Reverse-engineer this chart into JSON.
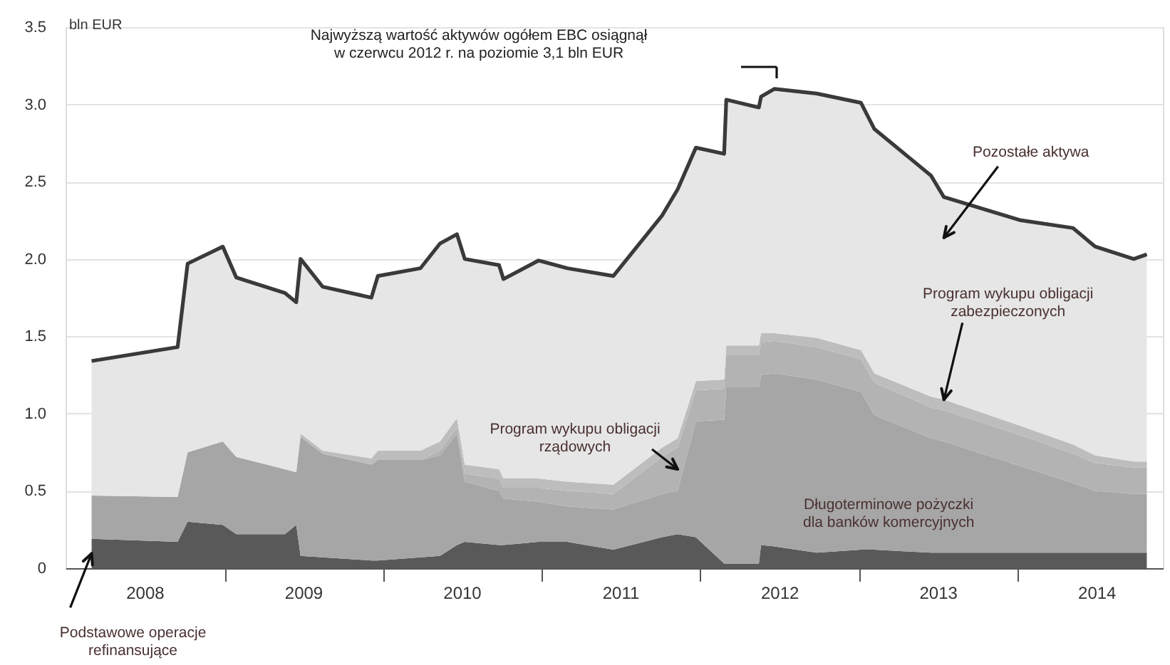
{
  "chart_data": {
    "type": "area",
    "stacked": true,
    "ylabel": "bln EUR",
    "grid": "y",
    "x": [
      "2008-03-01",
      "2008-09-15",
      "2008-10-08",
      "2008-12-28",
      "2009-01-28",
      "2009-05-20",
      "2009-06-15",
      "2009-06-25",
      "2009-08-15",
      "2009-12-05",
      "2009-12-20",
      "2010-03-28",
      "2010-05-12",
      "2010-06-20",
      "2010-07-08",
      "2010-09-25",
      "2010-10-05",
      "2010-12-25",
      "2011-03-01",
      "2011-06-15",
      "2011-10-05",
      "2011-11-10",
      "2011-12-22",
      "2012-02-25",
      "2012-03-01",
      "2012-05-15",
      "2012-05-20",
      "2012-06-20",
      "2012-09-25",
      "2013-01-05",
      "2013-02-05",
      "2013-06-15",
      "2013-07-15",
      "2014-01-08",
      "2014-05-08",
      "2014-06-28",
      "2014-09-25",
      "2014-10-25"
    ],
    "series": [
      {
        "name": "Podstawowe operacje\nrefinansujące",
        "color": "#595959",
        "values": [
          0.19,
          0.17,
          0.3,
          0.28,
          0.22,
          0.22,
          0.28,
          0.08,
          0.07,
          0.05,
          0.05,
          0.07,
          0.08,
          0.15,
          0.17,
          0.15,
          0.15,
          0.17,
          0.17,
          0.12,
          0.2,
          0.22,
          0.2,
          0.03,
          0.03,
          0.03,
          0.15,
          0.14,
          0.1,
          0.12,
          0.12,
          0.1,
          0.1,
          0.1,
          0.1,
          0.1,
          0.1,
          0.1
        ]
      },
      {
        "name": "Długoterminowe pożyczki\ndla banków komercyjnych",
        "color": "#a6a6a6",
        "values": [
          0.28,
          0.29,
          0.45,
          0.54,
          0.5,
          0.42,
          0.34,
          0.77,
          0.67,
          0.62,
          0.65,
          0.63,
          0.65,
          0.72,
          0.39,
          0.35,
          0.3,
          0.26,
          0.23,
          0.26,
          0.28,
          0.28,
          0.75,
          0.93,
          1.14,
          1.14,
          1.1,
          1.12,
          1.12,
          1.02,
          0.87,
          0.74,
          0.72,
          0.56,
          0.45,
          0.4,
          0.38,
          0.38
        ]
      },
      {
        "name": "Program wykupu obligacji\nrządowych",
        "color": "#b3b3b3",
        "values": [
          0,
          0,
          0,
          0,
          0,
          0,
          0,
          0,
          0,
          0,
          0,
          0,
          0.03,
          0.04,
          0.05,
          0.08,
          0.07,
          0.09,
          0.1,
          0.1,
          0.24,
          0.28,
          0.2,
          0.2,
          0.21,
          0.21,
          0.21,
          0.21,
          0.21,
          0.21,
          0.21,
          0.2,
          0.2,
          0.2,
          0.19,
          0.18,
          0.17,
          0.17
        ]
      },
      {
        "name": "Program wykupu obligacji\nzabezpieczonych",
        "color": "#bdbdbd",
        "values": [
          0,
          0,
          0,
          0,
          0,
          0,
          0,
          0.02,
          0.02,
          0.04,
          0.06,
          0.06,
          0.06,
          0.06,
          0.06,
          0.06,
          0.06,
          0.06,
          0.06,
          0.06,
          0.06,
          0.06,
          0.06,
          0.06,
          0.06,
          0.06,
          0.06,
          0.05,
          0.06,
          0.06,
          0.06,
          0.07,
          0.07,
          0.06,
          0.06,
          0.05,
          0.04,
          0.04
        ]
      },
      {
        "name": "Pozostałe aktywa",
        "color": "#e6e6e6",
        "values": [
          0.87,
          0.97,
          1.22,
          1.26,
          1.16,
          1.14,
          1.1,
          1.13,
          1.06,
          1.04,
          1.13,
          1.18,
          1.28,
          1.19,
          1.33,
          1.32,
          1.29,
          1.41,
          1.38,
          1.35,
          1.5,
          1.61,
          1.51,
          1.46,
          1.59,
          1.54,
          1.53,
          1.58,
          1.58,
          1.6,
          1.58,
          1.43,
          1.31,
          1.33,
          1.4,
          1.35,
          1.31,
          1.34
        ]
      }
    ],
    "xlim": [
      "2008-01-01",
      "2014-12-01"
    ],
    "xticks": [
      {
        "value": "2008-07-01",
        "label": "2008"
      },
      {
        "value": "2009-01-01",
        "label": null
      },
      {
        "value": "2009-07-01",
        "label": "2009"
      },
      {
        "value": "2010-01-01",
        "label": null
      },
      {
        "value": "2010-07-01",
        "label": "2010"
      },
      {
        "value": "2011-01-01",
        "label": null
      },
      {
        "value": "2011-07-01",
        "label": "2011"
      },
      {
        "value": "2012-01-01",
        "label": null
      },
      {
        "value": "2012-07-01",
        "label": "2012"
      },
      {
        "value": "2013-01-01",
        "label": null
      },
      {
        "value": "2013-07-01",
        "label": "2013"
      },
      {
        "value": "2014-01-01",
        "label": null
      },
      {
        "value": "2014-07-01",
        "label": "2014"
      }
    ],
    "ylim": [
      0,
      3.5
    ],
    "yticks": [
      0,
      0.5,
      {
        "value": 1,
        "label": "1.0"
      },
      1.5,
      {
        "value": 2,
        "label": "2.0"
      },
      2.5,
      {
        "value": 3,
        "label": "3.0"
      },
      3.5
    ],
    "annotations": [
      "Najwyższą wartość aktywów ogółem EBC osiągnął\nw czerwcu 2012 r. na poziomie 3,1 bln EUR"
    ]
  }
}
